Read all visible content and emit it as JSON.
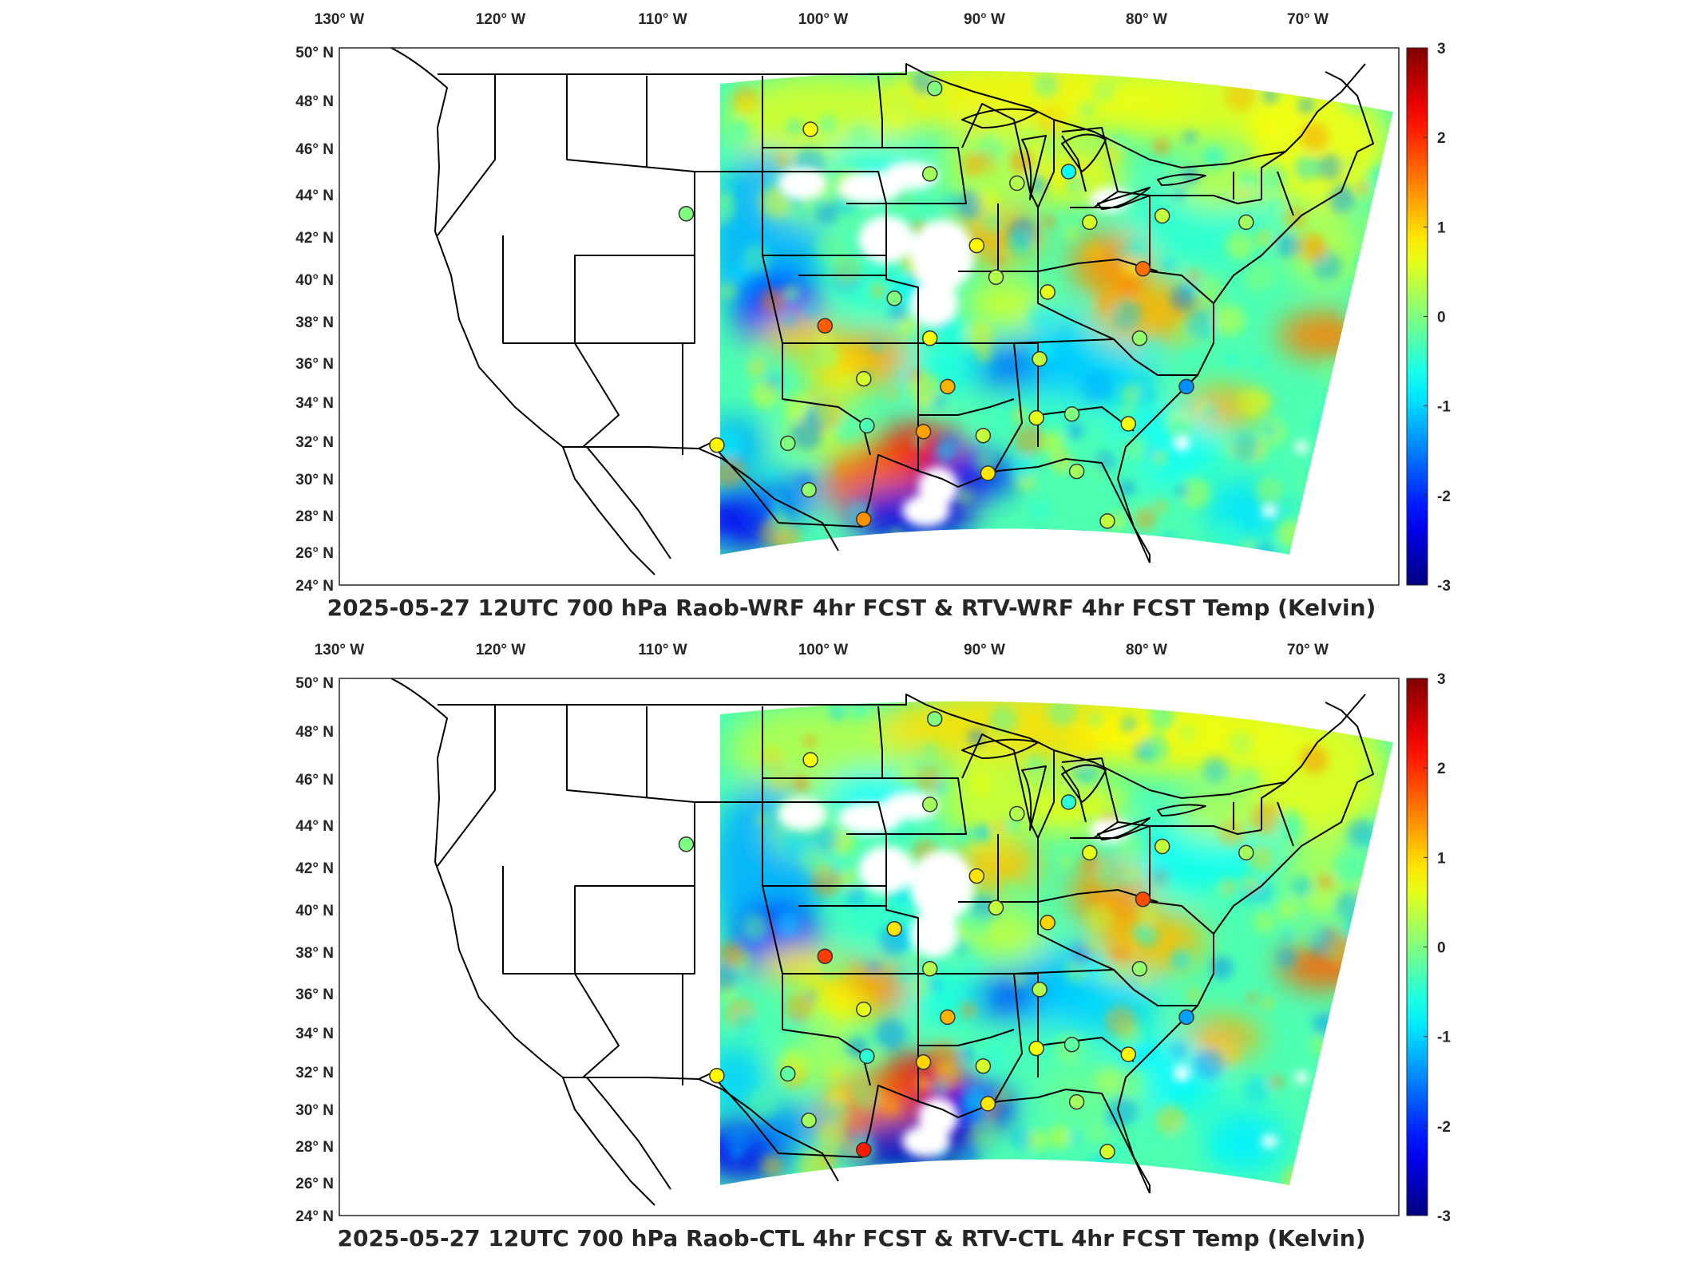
{
  "panels": [
    {
      "title": "2025-05-27 12UTC 700 hPa Raob-WRF 4hr FCST & RTV-WRF 4hr FCST Temp (Kelvin)",
      "lon_labels": [
        "130° W",
        "120° W",
        "110° W",
        "100° W",
        "90° W",
        "80° W",
        "70° W"
      ],
      "lat_labels": [
        "50° N",
        "48° N",
        "46° N",
        "44° N",
        "42° N",
        "40° N",
        "38° N",
        "36° N",
        "34° N",
        "32° N",
        "30° N",
        "28° N",
        "26° N",
        "24° N"
      ],
      "colorbar": {
        "ticks": [
          "3",
          "2",
          "1",
          "0",
          "-1",
          "-2",
          "-3"
        ],
        "min": -3,
        "max": 3,
        "colormap": "jet"
      },
      "stations": [
        {
          "lon": -100.8,
          "lat": 46.8,
          "value": 0.7
        },
        {
          "lon": -108.5,
          "lat": 43.1,
          "value": 0.0
        },
        {
          "lon": -93.4,
          "lat": 44.9,
          "value": 0.2
        },
        {
          "lon": -93.1,
          "lat": 48.5,
          "value": 0.0
        },
        {
          "lon": -88.0,
          "lat": 44.5,
          "value": 0.3
        },
        {
          "lon": -84.8,
          "lat": 45.0,
          "value": -0.7
        },
        {
          "lon": -83.5,
          "lat": 42.7,
          "value": 0.5
        },
        {
          "lon": -79.0,
          "lat": 43.0,
          "value": 0.4
        },
        {
          "lon": -73.8,
          "lat": 42.7,
          "value": 0.2
        },
        {
          "lon": -90.5,
          "lat": 41.6,
          "value": 0.8
        },
        {
          "lon": -89.3,
          "lat": 40.1,
          "value": 0.3
        },
        {
          "lon": -80.2,
          "lat": 40.5,
          "value": 1.6
        },
        {
          "lon": -86.1,
          "lat": 39.4,
          "value": 0.6
        },
        {
          "lon": -95.6,
          "lat": 39.1,
          "value": 0.0
        },
        {
          "lon": -99.9,
          "lat": 37.8,
          "value": 1.7
        },
        {
          "lon": -93.4,
          "lat": 37.2,
          "value": 0.7
        },
        {
          "lon": -86.6,
          "lat": 36.2,
          "value": 0.4
        },
        {
          "lon": -80.4,
          "lat": 37.2,
          "value": 0.1
        },
        {
          "lon": -77.5,
          "lat": 34.8,
          "value": -1.4
        },
        {
          "lon": -97.5,
          "lat": 35.2,
          "value": 0.5
        },
        {
          "lon": -92.3,
          "lat": 34.8,
          "value": 1.2
        },
        {
          "lon": -84.6,
          "lat": 33.4,
          "value": 0.0
        },
        {
          "lon": -86.8,
          "lat": 33.2,
          "value": 0.6
        },
        {
          "lon": -81.1,
          "lat": 32.9,
          "value": 0.7
        },
        {
          "lon": -90.1,
          "lat": 32.3,
          "value": 0.4
        },
        {
          "lon": -93.8,
          "lat": 32.5,
          "value": 1.3
        },
        {
          "lon": -97.3,
          "lat": 32.8,
          "value": -0.3
        },
        {
          "lon": -102.2,
          "lat": 31.9,
          "value": 0.0
        },
        {
          "lon": -106.6,
          "lat": 31.8,
          "value": 0.8
        },
        {
          "lon": -100.9,
          "lat": 29.4,
          "value": 0.1
        },
        {
          "lon": -97.5,
          "lat": 27.8,
          "value": 1.4
        },
        {
          "lon": -89.8,
          "lat": 30.3,
          "value": 0.9
        },
        {
          "lon": -84.3,
          "lat": 30.4,
          "value": 0.2
        },
        {
          "lon": -82.4,
          "lat": 27.7,
          "value": 0.4
        }
      ]
    },
    {
      "title": "2025-05-27 12UTC 700 hPa Raob-CTL 4hr FCST & RTV-CTL 4hr FCST Temp (Kelvin)",
      "lon_labels": [
        "130° W",
        "120° W",
        "110° W",
        "100° W",
        "90° W",
        "80° W",
        "70° W"
      ],
      "lat_labels": [
        "50° N",
        "48° N",
        "46° N",
        "44° N",
        "42° N",
        "40° N",
        "38° N",
        "36° N",
        "34° N",
        "32° N",
        "30° N",
        "28° N",
        "26° N",
        "24° N"
      ],
      "colorbar": {
        "ticks": [
          "3",
          "2",
          "1",
          "0",
          "-1",
          "-2",
          "-3"
        ],
        "min": -3,
        "max": 3,
        "colormap": "jet"
      },
      "stations": [
        {
          "lon": -100.8,
          "lat": 46.8,
          "value": 0.7
        },
        {
          "lon": -108.5,
          "lat": 43.1,
          "value": 0.0
        },
        {
          "lon": -93.4,
          "lat": 44.9,
          "value": 0.2
        },
        {
          "lon": -93.1,
          "lat": 48.5,
          "value": 0.0
        },
        {
          "lon": -88.0,
          "lat": 44.5,
          "value": 0.3
        },
        {
          "lon": -84.8,
          "lat": 45.0,
          "value": -0.5
        },
        {
          "lon": -83.5,
          "lat": 42.7,
          "value": 0.6
        },
        {
          "lon": -79.0,
          "lat": 43.0,
          "value": 0.4
        },
        {
          "lon": -73.8,
          "lat": 42.7,
          "value": 0.2
        },
        {
          "lon": -90.5,
          "lat": 41.6,
          "value": 0.9
        },
        {
          "lon": -89.3,
          "lat": 40.1,
          "value": 0.4
        },
        {
          "lon": -80.2,
          "lat": 40.5,
          "value": 1.8
        },
        {
          "lon": -86.1,
          "lat": 39.4,
          "value": 1.0
        },
        {
          "lon": -95.6,
          "lat": 39.1,
          "value": 0.9
        },
        {
          "lon": -99.9,
          "lat": 37.8,
          "value": 1.9
        },
        {
          "lon": -93.4,
          "lat": 37.2,
          "value": 0.3
        },
        {
          "lon": -86.6,
          "lat": 36.2,
          "value": 0.3
        },
        {
          "lon": -80.4,
          "lat": 37.2,
          "value": 0.1
        },
        {
          "lon": -77.5,
          "lat": 34.8,
          "value": -1.3
        },
        {
          "lon": -97.5,
          "lat": 35.2,
          "value": 0.6
        },
        {
          "lon": -92.3,
          "lat": 34.8,
          "value": 1.2
        },
        {
          "lon": -84.6,
          "lat": 33.4,
          "value": -0.2
        },
        {
          "lon": -86.8,
          "lat": 33.2,
          "value": 0.7
        },
        {
          "lon": -81.1,
          "lat": 32.9,
          "value": 0.8
        },
        {
          "lon": -90.1,
          "lat": 32.3,
          "value": 0.5
        },
        {
          "lon": -93.8,
          "lat": 32.5,
          "value": 1.0
        },
        {
          "lon": -97.3,
          "lat": 32.8,
          "value": -0.5
        },
        {
          "lon": -102.2,
          "lat": 31.9,
          "value": -0.2
        },
        {
          "lon": -106.6,
          "lat": 31.8,
          "value": 0.8
        },
        {
          "lon": -100.9,
          "lat": 29.4,
          "value": 0.2
        },
        {
          "lon": -97.5,
          "lat": 27.8,
          "value": 2.1
        },
        {
          "lon": -89.8,
          "lat": 30.3,
          "value": 0.9
        },
        {
          "lon": -84.3,
          "lat": 30.4,
          "value": 0.2
        },
        {
          "lon": -82.4,
          "lat": 27.7,
          "value": 0.5
        }
      ]
    }
  ]
}
